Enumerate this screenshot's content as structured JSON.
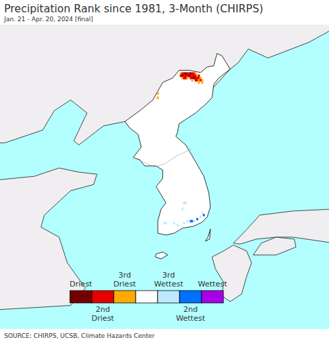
{
  "chart_data": {
    "type": "map",
    "title": "Precipitation Rank since 1981, 3-Month (CHIRPS)",
    "subtitle": "Jan. 21 - Apr. 20, 2024 [final]",
    "source": "SOURCE: CHIRPS, UCSB, Climate Hazards Center",
    "color_classes": [
      {
        "label": "Driest",
        "color": "#730000"
      },
      {
        "label": "2nd Driest",
        "color": "#e60000"
      },
      {
        "label": "3rd Driest",
        "color": "#ffaa00"
      },
      {
        "label": null,
        "color": "#ffffff"
      },
      {
        "label": "3rd Wettest",
        "color": "#bee8ff"
      },
      {
        "label": "2nd Wettest",
        "color": "#0070ff"
      },
      {
        "label": "Wettest",
        "color": "#a900e6"
      }
    ],
    "cells": [
      {
        "lon": 127.7,
        "lat": 42.1,
        "class": 2
      },
      {
        "lon": 127.8,
        "lat": 42.1,
        "class": 1
      },
      {
        "lon": 127.9,
        "lat": 42.1,
        "class": 1
      },
      {
        "lon": 128.0,
        "lat": 42.1,
        "class": 0
      },
      {
        "lon": 128.1,
        "lat": 42.1,
        "class": 1
      },
      {
        "lon": 128.2,
        "lat": 42.1,
        "class": 1
      },
      {
        "lon": 128.3,
        "lat": 42.1,
        "class": 0
      },
      {
        "lon": 128.4,
        "lat": 42.1,
        "class": 1
      },
      {
        "lon": 128.5,
        "lat": 42.1,
        "class": 1
      },
      {
        "lon": 128.6,
        "lat": 42.1,
        "class": 2
      },
      {
        "lon": 127.7,
        "lat": 42.0,
        "class": 1
      },
      {
        "lon": 127.8,
        "lat": 42.0,
        "class": 0
      },
      {
        "lon": 127.9,
        "lat": 42.0,
        "class": 1
      },
      {
        "lon": 128.0,
        "lat": 42.0,
        "class": 1
      },
      {
        "lon": 128.1,
        "lat": 42.0,
        "class": 1
      },
      {
        "lon": 128.2,
        "lat": 42.0,
        "class": 0
      },
      {
        "lon": 128.3,
        "lat": 42.0,
        "class": 1
      },
      {
        "lon": 128.4,
        "lat": 42.0,
        "class": 1
      },
      {
        "lon": 128.5,
        "lat": 42.0,
        "class": 1
      },
      {
        "lon": 128.6,
        "lat": 42.0,
        "class": 1
      },
      {
        "lon": 128.7,
        "lat": 42.0,
        "class": 2
      },
      {
        "lon": 128.8,
        "lat": 42.0,
        "class": 1
      },
      {
        "lon": 127.8,
        "lat": 41.9,
        "class": 2
      },
      {
        "lon": 127.9,
        "lat": 41.9,
        "class": 1
      },
      {
        "lon": 128.0,
        "lat": 41.9,
        "class": 1
      },
      {
        "lon": 128.1,
        "lat": 41.9,
        "class": 2
      },
      {
        "lon": 128.3,
        "lat": 41.9,
        "class": 1
      },
      {
        "lon": 128.4,
        "lat": 41.9,
        "class": 1
      },
      {
        "lon": 128.5,
        "lat": 41.9,
        "class": 0
      },
      {
        "lon": 128.6,
        "lat": 41.9,
        "class": 1
      },
      {
        "lon": 128.7,
        "lat": 41.9,
        "class": 1
      },
      {
        "lon": 128.8,
        "lat": 41.9,
        "class": 1
      },
      {
        "lon": 128.9,
        "lat": 41.9,
        "class": 2
      },
      {
        "lon": 128.4,
        "lat": 41.8,
        "class": 2
      },
      {
        "lon": 128.6,
        "lat": 41.8,
        "class": 1
      },
      {
        "lon": 128.7,
        "lat": 41.8,
        "class": 1
      },
      {
        "lon": 128.8,
        "lat": 41.8,
        "class": 2
      },
      {
        "lon": 128.9,
        "lat": 41.8,
        "class": 1
      },
      {
        "lon": 129.0,
        "lat": 41.8,
        "class": 2
      },
      {
        "lon": 128.8,
        "lat": 41.7,
        "class": 2
      },
      {
        "lon": 129.0,
        "lat": 41.7,
        "class": 2
      },
      {
        "lon": 126.3,
        "lat": 41.2,
        "class": 2
      },
      {
        "lon": 126.3,
        "lat": 41.0,
        "class": 2
      },
      {
        "lon": 127.9,
        "lat": 36.0,
        "class": 4
      },
      {
        "lon": 128.0,
        "lat": 36.0,
        "class": 4
      },
      {
        "lon": 127.8,
        "lat": 35.7,
        "class": 4
      },
      {
        "lon": 126.7,
        "lat": 35.0,
        "class": 4
      },
      {
        "lon": 126.8,
        "lat": 35.0,
        "class": 4
      },
      {
        "lon": 127.3,
        "lat": 35.0,
        "class": 4
      },
      {
        "lon": 127.5,
        "lat": 34.9,
        "class": 4
      },
      {
        "lon": 127.9,
        "lat": 35.0,
        "class": 4
      },
      {
        "lon": 128.1,
        "lat": 35.1,
        "class": 4
      },
      {
        "lon": 128.3,
        "lat": 35.1,
        "class": 5
      },
      {
        "lon": 128.4,
        "lat": 35.1,
        "class": 5
      },
      {
        "lon": 128.5,
        "lat": 35.1,
        "class": 4
      },
      {
        "lon": 128.7,
        "lat": 35.2,
        "class": 5
      },
      {
        "lon": 128.9,
        "lat": 35.3,
        "class": 4
      },
      {
        "lon": 129.1,
        "lat": 35.4,
        "class": 5
      },
      {
        "lon": 129.0,
        "lat": 35.5,
        "class": 4
      }
    ]
  }
}
